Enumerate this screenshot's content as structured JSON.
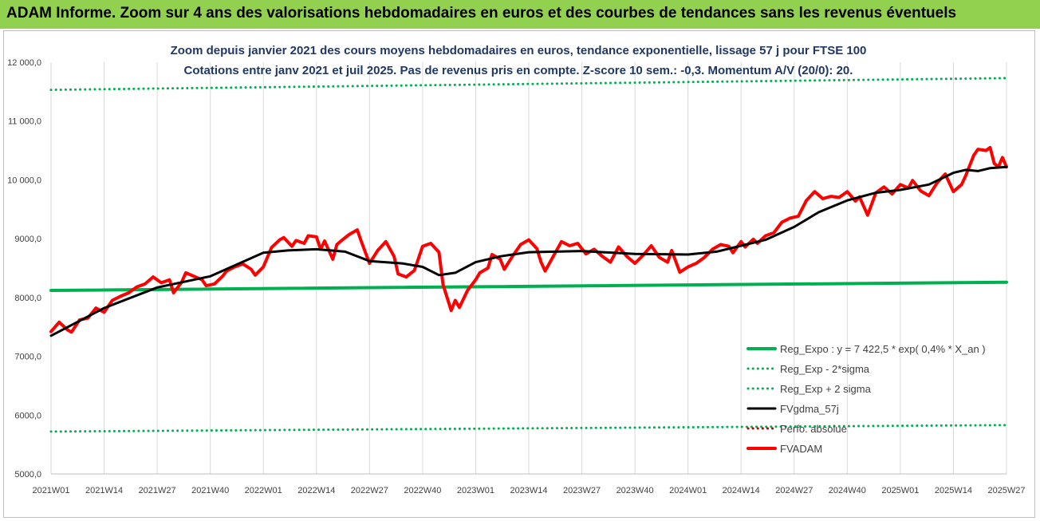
{
  "banner": {
    "title": "ADAM Informe. Zoom sur 4 ans des valorisations hebdomadaires en euros et des courbes de tendances sans les revenus éventuels",
    "color": "#92d050"
  },
  "chart_data": {
    "type": "line",
    "title_lines": [
      "Zoom depuis janvier 2021 des cours moyens hebdomadaires en euros, tendance exponentielle, lissage 57 j pour FTSE 100",
      "Cotations entre janv 2021 et juil 2025. Pas de revenus pris en compte. Z-score 10 sem.: -0,3. Momentum A/V (20/0): 20."
    ],
    "x_categories": [
      "2021W01",
      "2021W14",
      "2021W27",
      "2021W40",
      "2022W01",
      "2022W14",
      "2022W27",
      "2022W40",
      "2023W01",
      "2023W14",
      "2023W27",
      "2023W40",
      "2024W01",
      "2024W14",
      "2024W27",
      "2024W40",
      "2025W01",
      "2025W14",
      "2025W27"
    ],
    "y_ticks": [
      "5000,0",
      "6000,0",
      "7000,0",
      "8000,0",
      "9000,0",
      "10 000,0",
      "11 000,0",
      "12 000,0"
    ],
    "ylim": [
      5000,
      12000
    ],
    "grid": "vertical",
    "legend_position": "right-bottom",
    "series": [
      {
        "name": "Reg_Expo : y = 7 422,5 * exp( 0,4% *  X_an )",
        "color": "#00b050",
        "style": "solid-thick",
        "points": [
          [
            0,
            8120
          ],
          [
            234,
            8260
          ]
        ]
      },
      {
        "name": "Reg_Exp - 2*sigma",
        "color": "#00b050",
        "style": "dotted",
        "points": [
          [
            0,
            5720
          ],
          [
            234,
            5830
          ]
        ]
      },
      {
        "name": "Reg_Exp + 2 sigma",
        "color": "#00b050",
        "style": "dotted",
        "points": [
          [
            0,
            11530
          ],
          [
            234,
            11730
          ]
        ]
      },
      {
        "name": "FVgdma_57j",
        "color": "#000000",
        "style": "solid",
        "points": [
          [
            0,
            7350
          ],
          [
            13,
            7820
          ],
          [
            26,
            8170
          ],
          [
            39,
            8360
          ],
          [
            52,
            8760
          ],
          [
            58,
            8800
          ],
          [
            65,
            8820
          ],
          [
            72,
            8780
          ],
          [
            78,
            8620
          ],
          [
            86,
            8580
          ],
          [
            91,
            8520
          ],
          [
            95,
            8380
          ],
          [
            99,
            8420
          ],
          [
            104,
            8600
          ],
          [
            110,
            8700
          ],
          [
            117,
            8770
          ],
          [
            130,
            8790
          ],
          [
            143,
            8740
          ],
          [
            156,
            8730
          ],
          [
            163,
            8780
          ],
          [
            169,
            8880
          ],
          [
            175,
            8980
          ],
          [
            182,
            9200
          ],
          [
            188,
            9450
          ],
          [
            195,
            9650
          ],
          [
            202,
            9780
          ],
          [
            208,
            9830
          ],
          [
            215,
            9920
          ],
          [
            221,
            10120
          ],
          [
            224,
            10170
          ],
          [
            227,
            10150
          ],
          [
            230,
            10200
          ],
          [
            234,
            10220
          ]
        ]
      },
      {
        "name": "Perfo. absolue",
        "color": "#c00000",
        "style": "dotted",
        "points": []
      },
      {
        "name": "FVADAM",
        "color": "#ff0000",
        "style": "solid-thick",
        "points": [
          [
            0,
            7420
          ],
          [
            2,
            7580
          ],
          [
            4,
            7450
          ],
          [
            5,
            7410
          ],
          [
            7,
            7620
          ],
          [
            9,
            7650
          ],
          [
            11,
            7820
          ],
          [
            13,
            7750
          ],
          [
            15,
            7950
          ],
          [
            17,
            8020
          ],
          [
            19,
            8080
          ],
          [
            21,
            8180
          ],
          [
            23,
            8230
          ],
          [
            25,
            8350
          ],
          [
            27,
            8250
          ],
          [
            29,
            8300
          ],
          [
            30,
            8080
          ],
          [
            32,
            8260
          ],
          [
            33,
            8420
          ],
          [
            35,
            8360
          ],
          [
            37,
            8300
          ],
          [
            38,
            8200
          ],
          [
            40,
            8230
          ],
          [
            42,
            8360
          ],
          [
            43,
            8450
          ],
          [
            45,
            8520
          ],
          [
            47,
            8570
          ],
          [
            49,
            8480
          ],
          [
            50,
            8380
          ],
          [
            52,
            8520
          ],
          [
            54,
            8850
          ],
          [
            56,
            8980
          ],
          [
            57,
            9020
          ],
          [
            59,
            8870
          ],
          [
            60,
            8970
          ],
          [
            62,
            8920
          ],
          [
            63,
            9050
          ],
          [
            65,
            9030
          ],
          [
            66,
            8820
          ],
          [
            67,
            8960
          ],
          [
            69,
            8650
          ],
          [
            70,
            8900
          ],
          [
            71,
            8960
          ],
          [
            73,
            9070
          ],
          [
            75,
            9150
          ],
          [
            76,
            8950
          ],
          [
            78,
            8580
          ],
          [
            80,
            8800
          ],
          [
            82,
            8950
          ],
          [
            84,
            8700
          ],
          [
            85,
            8400
          ],
          [
            87,
            8350
          ],
          [
            89,
            8460
          ],
          [
            91,
            8870
          ],
          [
            93,
            8920
          ],
          [
            95,
            8770
          ],
          [
            96,
            8220
          ],
          [
            98,
            7780
          ],
          [
            99,
            7950
          ],
          [
            100,
            7830
          ],
          [
            102,
            8120
          ],
          [
            104,
            8300
          ],
          [
            105,
            8420
          ],
          [
            107,
            8500
          ],
          [
            108,
            8730
          ],
          [
            110,
            8650
          ],
          [
            111,
            8480
          ],
          [
            113,
            8700
          ],
          [
            115,
            8900
          ],
          [
            117,
            8980
          ],
          [
            119,
            8830
          ],
          [
            120,
            8600
          ],
          [
            121,
            8450
          ],
          [
            123,
            8700
          ],
          [
            125,
            8950
          ],
          [
            127,
            8880
          ],
          [
            129,
            8920
          ],
          [
            131,
            8740
          ],
          [
            133,
            8820
          ],
          [
            135,
            8700
          ],
          [
            137,
            8600
          ],
          [
            139,
            8860
          ],
          [
            141,
            8700
          ],
          [
            143,
            8580
          ],
          [
            145,
            8720
          ],
          [
            147,
            8880
          ],
          [
            149,
            8680
          ],
          [
            151,
            8600
          ],
          [
            152,
            8800
          ],
          [
            154,
            8430
          ],
          [
            156,
            8520
          ],
          [
            158,
            8580
          ],
          [
            160,
            8680
          ],
          [
            162,
            8820
          ],
          [
            164,
            8900
          ],
          [
            166,
            8870
          ],
          [
            167,
            8760
          ],
          [
            169,
            8950
          ],
          [
            170,
            8860
          ],
          [
            172,
            8990
          ],
          [
            173,
            8920
          ],
          [
            175,
            9050
          ],
          [
            177,
            9100
          ],
          [
            179,
            9280
          ],
          [
            181,
            9350
          ],
          [
            183,
            9380
          ],
          [
            185,
            9650
          ],
          [
            187,
            9800
          ],
          [
            189,
            9680
          ],
          [
            191,
            9720
          ],
          [
            193,
            9700
          ],
          [
            195,
            9800
          ],
          [
            197,
            9640
          ],
          [
            198,
            9710
          ],
          [
            200,
            9400
          ],
          [
            202,
            9780
          ],
          [
            204,
            9880
          ],
          [
            206,
            9760
          ],
          [
            208,
            9920
          ],
          [
            210,
            9860
          ],
          [
            211,
            9990
          ],
          [
            213,
            9810
          ],
          [
            215,
            9730
          ],
          [
            217,
            9950
          ],
          [
            219,
            10100
          ],
          [
            221,
            9800
          ],
          [
            223,
            9920
          ],
          [
            224,
            10070
          ],
          [
            226,
            10420
          ],
          [
            227,
            10520
          ],
          [
            229,
            10500
          ],
          [
            230,
            10550
          ],
          [
            231,
            10280
          ],
          [
            232,
            10220
          ],
          [
            233,
            10380
          ],
          [
            234,
            10220
          ]
        ]
      }
    ]
  }
}
